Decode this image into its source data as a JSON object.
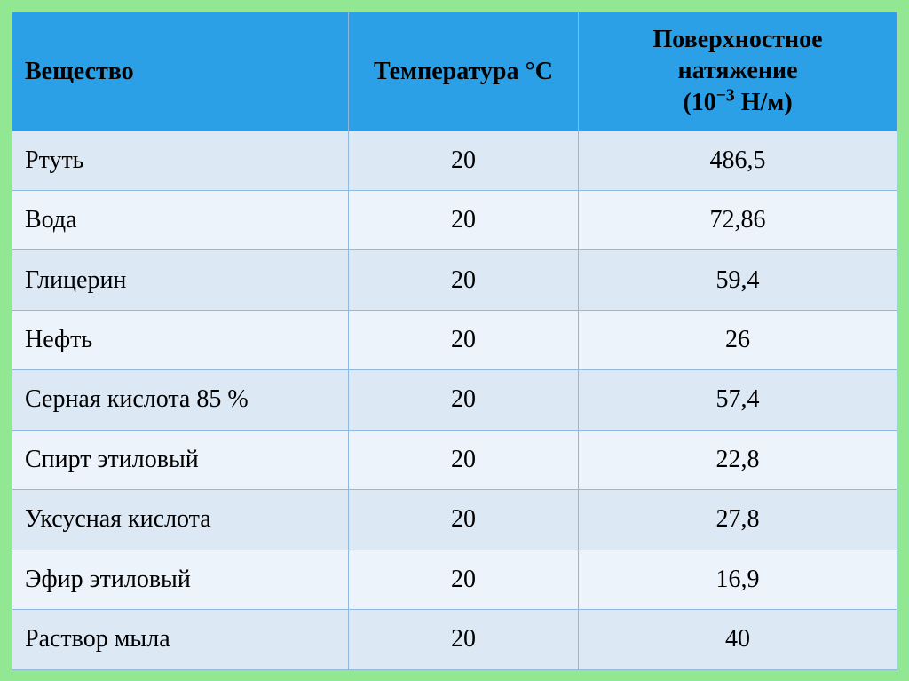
{
  "table": {
    "header_bg": "#2ba0e6",
    "row_odd_bg": "#dce8f4",
    "row_even_bg": "#edf3fa",
    "border_color": "#90b9e0",
    "columns": [
      {
        "key": "substance",
        "label": "Вещество",
        "align": "left",
        "width_pct": 38
      },
      {
        "key": "temp",
        "label": "Температура °C",
        "align": "center",
        "width_pct": 26
      },
      {
        "key": "tension",
        "label": "Поверхностное натяжение (10⁻³ Н/м)",
        "align": "center",
        "width_pct": 36
      }
    ],
    "rows": [
      {
        "substance": "Ртуть",
        "temp": "20",
        "tension": "486,5"
      },
      {
        "substance": "Вода",
        "temp": "20",
        "tension": "72,86"
      },
      {
        "substance": "Глицерин",
        "temp": "20",
        "tension": "59,4"
      },
      {
        "substance": "Нефть",
        "temp": "20",
        "tension": "26"
      },
      {
        "substance": "Серная кислота 85 %",
        "temp": "20",
        "tension": "57,4"
      },
      {
        "substance": "Спирт этиловый",
        "temp": "20",
        "tension": "22,8"
      },
      {
        "substance": "Уксусная кислота",
        "temp": "20",
        "tension": "27,8"
      },
      {
        "substance": "Эфир этиловый",
        "temp": "20",
        "tension": "16,9"
      },
      {
        "substance": "Раствор мыла",
        "temp": "20",
        "tension": "40"
      }
    ]
  },
  "page_bg": "#92e892"
}
